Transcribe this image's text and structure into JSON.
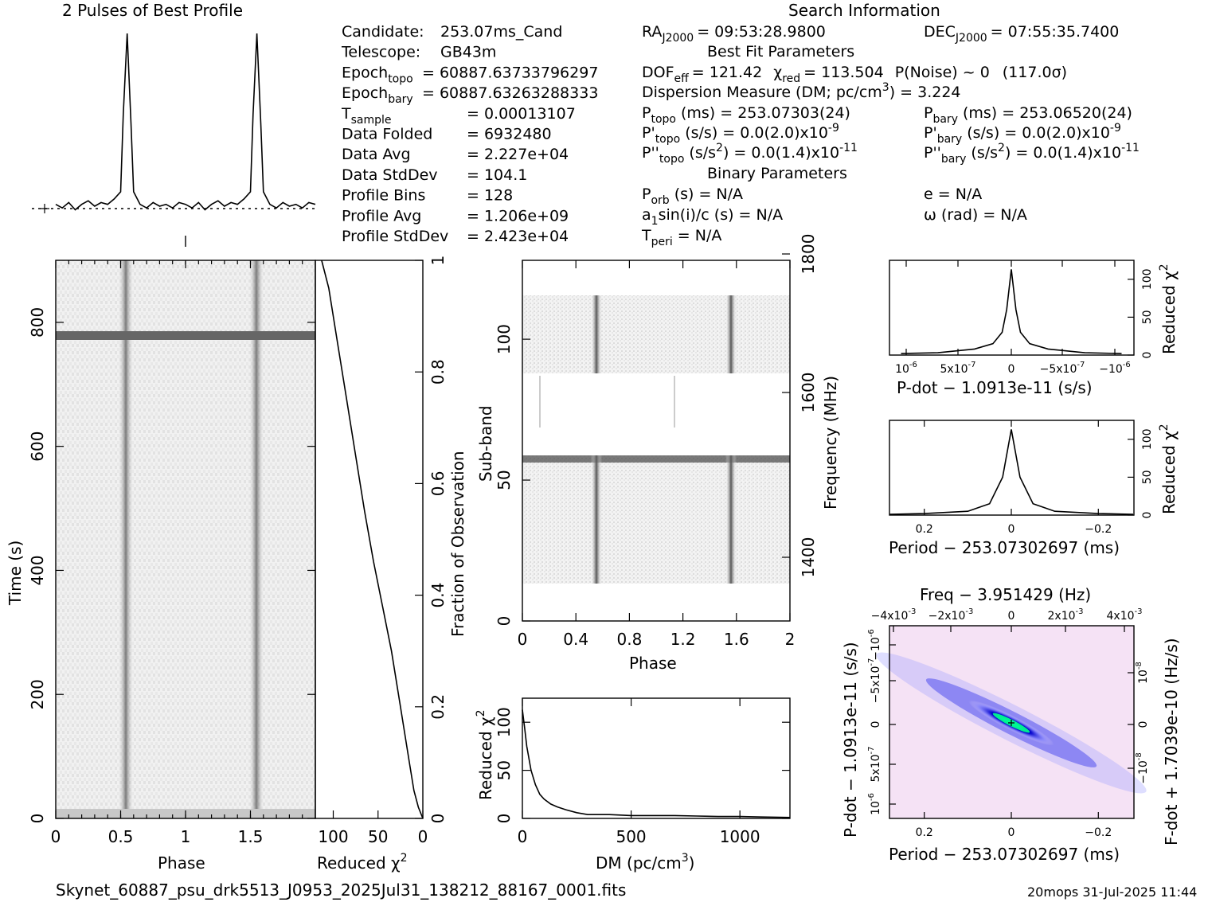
{
  "header": {
    "profile_title": "2 Pulses of Best Profile",
    "search_title": "Search Information"
  },
  "info_left": [
    {
      "label": "Candidate:",
      "value": "253.07ms_Cand"
    },
    {
      "label": "Telescope:",
      "value": "GB43m"
    },
    {
      "label": "Epoch",
      "sub": "topo",
      "value": "= 60887.63733796297"
    },
    {
      "label": "Epoch",
      "sub": "bary",
      "value": "= 60887.63263288333"
    },
    {
      "label": "T",
      "sub": "sample",
      "value": "=   0.00013107"
    },
    {
      "label": "Data Folded",
      "value": "=   6932480"
    },
    {
      "label": "Data Avg",
      "value": "=   2.227e+04"
    },
    {
      "label": "Data StdDev",
      "value": "=   104.1"
    },
    {
      "label": "Profile Bins",
      "value": "=   128"
    },
    {
      "label": "Profile Avg",
      "value": "=   1.206e+09"
    },
    {
      "label": "Profile StdDev",
      "value": "=   2.423e+04"
    }
  ],
  "info_mid": {
    "ra": "RA",
    "ra_sub": "J2000",
    "ra_val": "= 09:53:28.9800",
    "best_fit_title": "Best Fit Parameters",
    "dof": "DOF",
    "dof_sub": "eff",
    "dof_val": "= 121.42",
    "chi_label": "χ",
    "chi_sub": "red",
    "chi_val": "= 113.504",
    "pnoise": "P(Noise) ~ 0",
    "sigma": "(117.0σ)",
    "dm_line": "Dispersion Measure (DM; pc/cm",
    "dm_val": ") = 3.224",
    "ptopo": "P",
    "ptopo_sub": "topo",
    "ptopo_val": "(ms) =  253.07303(24)",
    "pdtopo": "P'",
    "pdtopo_sub": "topo",
    "pdtopo_val": "(s/s) = 0.0(2.0)x10",
    "pdtopo_exp": "-9",
    "pddtopo": "P''",
    "pddtopo_sub": "topo",
    "pddtopo_val": "(s/s",
    "pddtopo_val2": ") = 0.0(1.4)x10",
    "pddtopo_exp": "-11",
    "binary_title": "Binary Parameters",
    "porb": "P",
    "porb_sub": "orb",
    "porb_val": "(s) = N/A",
    "a1sini": "a",
    "a1sini_sub": "1",
    "a1sini_val": "sin(i)/c (s) = N/A",
    "tperi": "T",
    "tperi_sub": "peri",
    "tperi_val": "= N/A"
  },
  "info_right": {
    "dec": "DEC",
    "dec_sub": "J2000",
    "dec_val": "= 07:55:35.7400",
    "pbary": "P",
    "pbary_sub": "bary",
    "pbary_val": "(ms) =  253.06520(24)",
    "pdbary": "P'",
    "pdbary_sub": "bary",
    "pdbary_val": "(s/s) = 0.0(2.0)x10",
    "pdbary_exp": "-9",
    "pddbary": "P''",
    "pddbary_sub": "bary",
    "pddbary_val": "(s/s",
    "pddbary_val2": ") = 0.0(1.4)x10",
    "pddbary_exp": "-11",
    "ecc": "e = N/A",
    "omega": "ω (rad) = N/A"
  },
  "footer": {
    "filename": "Skynet_60887_psu_drk5513_J0953_2025Jul31_138212_88167_0001.fits",
    "stamp": "20mops 31-Jul-2025 11:44"
  },
  "chart_data": [
    {
      "type": "line",
      "panel": "pulse-profile",
      "x": [
        0,
        0.05,
        0.1,
        0.15,
        0.2,
        0.25,
        0.3,
        0.35,
        0.4,
        0.45,
        0.5,
        0.52,
        0.55,
        0.58,
        0.6,
        0.65,
        0.7,
        0.75,
        0.8,
        0.85,
        0.9,
        0.95,
        1.0,
        1.05,
        1.1,
        1.15,
        1.2,
        1.25,
        1.3,
        1.35,
        1.4,
        1.45,
        1.5,
        1.52,
        1.55,
        1.58,
        1.6,
        1.65,
        1.7,
        1.75,
        1.8,
        1.85,
        1.9,
        1.95,
        2.0
      ],
      "values": [
        0.05,
        0.03,
        0.06,
        0.02,
        0.05,
        0.07,
        0.04,
        0.06,
        0.05,
        0.08,
        0.12,
        0.55,
        1.0,
        0.5,
        0.12,
        0.05,
        0.03,
        0.06,
        0.04,
        0.05,
        0.03,
        0.06,
        0.05,
        0.03,
        0.06,
        0.02,
        0.05,
        0.07,
        0.04,
        0.06,
        0.05,
        0.08,
        0.12,
        0.55,
        1.0,
        0.5,
        0.12,
        0.05,
        0.03,
        0.06,
        0.04,
        0.05,
        0.03,
        0.06,
        0.05
      ]
    },
    {
      "type": "heatmap",
      "panel": "time-phase",
      "xlabel": "Phase",
      "ylabel": "Time (s)",
      "xlim": [
        0,
        2
      ],
      "ylim": [
        0,
        900
      ],
      "x_ticks": [
        "0",
        "0.5",
        "1",
        "1.5"
      ],
      "y_ticks": [
        "0",
        "200",
        "400",
        "600",
        "800"
      ],
      "pulse_phases": [
        0.55,
        1.55
      ],
      "bright_row_time": 790
    },
    {
      "type": "line",
      "panel": "chi-vs-fraction",
      "xlabel": "Reduced χ",
      "ylabel": "Fraction of Observation",
      "x_ticks": [
        "100",
        "50",
        "0"
      ],
      "y_ticks": [
        "0",
        "0.2",
        "0.4",
        "0.6",
        "0.8",
        "1"
      ],
      "x": [
        0,
        5,
        10,
        15,
        25,
        35,
        45,
        55,
        65,
        75,
        85,
        95,
        105,
        113
      ],
      "y": [
        0,
        0.02,
        0.05,
        0.1,
        0.2,
        0.3,
        0.38,
        0.46,
        0.55,
        0.65,
        0.75,
        0.85,
        0.95,
        1.0
      ]
    },
    {
      "type": "heatmap",
      "panel": "subband-phase",
      "xlabel": "Phase",
      "ylabel": "Sub-band",
      "y2label": "Frequency (MHz)",
      "xlim": [
        0,
        2
      ],
      "ylim": [
        0,
        128
      ],
      "x_ticks": [
        "0",
        "0.4",
        "0.8",
        "1.2",
        "1.6",
        "2"
      ],
      "y_ticks": [
        "0",
        "50",
        "100"
      ],
      "y2_ticks": [
        "1400",
        "1600",
        "1800"
      ],
      "pulse_phases": [
        0.55,
        1.55
      ],
      "blank_bands": [
        [
          0,
          12
        ],
        [
          60,
          88
        ],
        [
          115,
          128
        ]
      ]
    },
    {
      "type": "line",
      "panel": "dm-chi",
      "xlabel": "DM (pc/cm",
      "ylabel": "Reduced χ",
      "x_ticks": [
        "0",
        "500",
        "1000"
      ],
      "y_ticks": [
        "0",
        "50",
        "100"
      ],
      "xlim": [
        0,
        1230
      ],
      "ylim": [
        0,
        125
      ],
      "x": [
        0,
        10,
        20,
        40,
        60,
        80,
        100,
        130,
        160,
        200,
        250,
        300,
        400,
        500,
        600,
        700,
        800,
        900,
        1000,
        1100,
        1230
      ],
      "y": [
        113,
        95,
        75,
        50,
        35,
        25,
        20,
        15,
        12,
        9,
        6,
        4,
        4,
        3,
        3,
        3,
        2.5,
        2,
        2,
        1.5,
        1
      ]
    },
    {
      "type": "line",
      "panel": "pdot-chi",
      "xlabel": "P-dot − 1.0913e-11 (s/s)",
      "ylabel": "Reduced χ",
      "x_ticks": [
        "10",
        "5x10",
        "0",
        "−5x10",
        "−10"
      ],
      "y_ticks": [
        "0",
        "50",
        "100"
      ],
      "x": [
        -1.2,
        -0.8,
        -0.4,
        -0.2,
        -0.1,
        -0.05,
        0,
        0.05,
        0.1,
        0.2,
        0.4,
        0.8,
        1.2
      ],
      "y": [
        2,
        3,
        8,
        15,
        30,
        60,
        113,
        60,
        30,
        15,
        8,
        3,
        2
      ]
    },
    {
      "type": "line",
      "panel": "period-chi",
      "xlabel": "Period − 253.07302697 (ms)",
      "ylabel": "Reduced χ",
      "x_ticks": [
        "0.2",
        "0",
        "−0.2"
      ],
      "y_ticks": [
        "0",
        "50",
        "100"
      ],
      "x": [
        0.28,
        0.2,
        0.1,
        0.05,
        0.02,
        0,
        -0.02,
        -0.05,
        -0.1,
        -0.2,
        -0.28
      ],
      "y": [
        1,
        2,
        5,
        15,
        50,
        113,
        50,
        15,
        5,
        2,
        1
      ]
    },
    {
      "type": "heatmap",
      "panel": "period-pdot",
      "title": "Freq − 3.951429 (Hz)",
      "xlabel": "Period − 253.07302697 (ms)",
      "ylabel": "P-dot − 1.0913e-11 (s/s)",
      "y2label": "F-dot + 1.7039e-10 (Hz/s)",
      "x_ticks": [
        "0.2",
        "0",
        "−0.2"
      ],
      "top_ticks": [
        "−4x10",
        "−2x10",
        "0",
        "2x10",
        "4x10"
      ],
      "y_ticks": [
        "10",
        "5x10",
        "0",
        "−5x10",
        "−10"
      ],
      "y2_ticks": [
        "10",
        "0",
        "−10"
      ]
    }
  ]
}
